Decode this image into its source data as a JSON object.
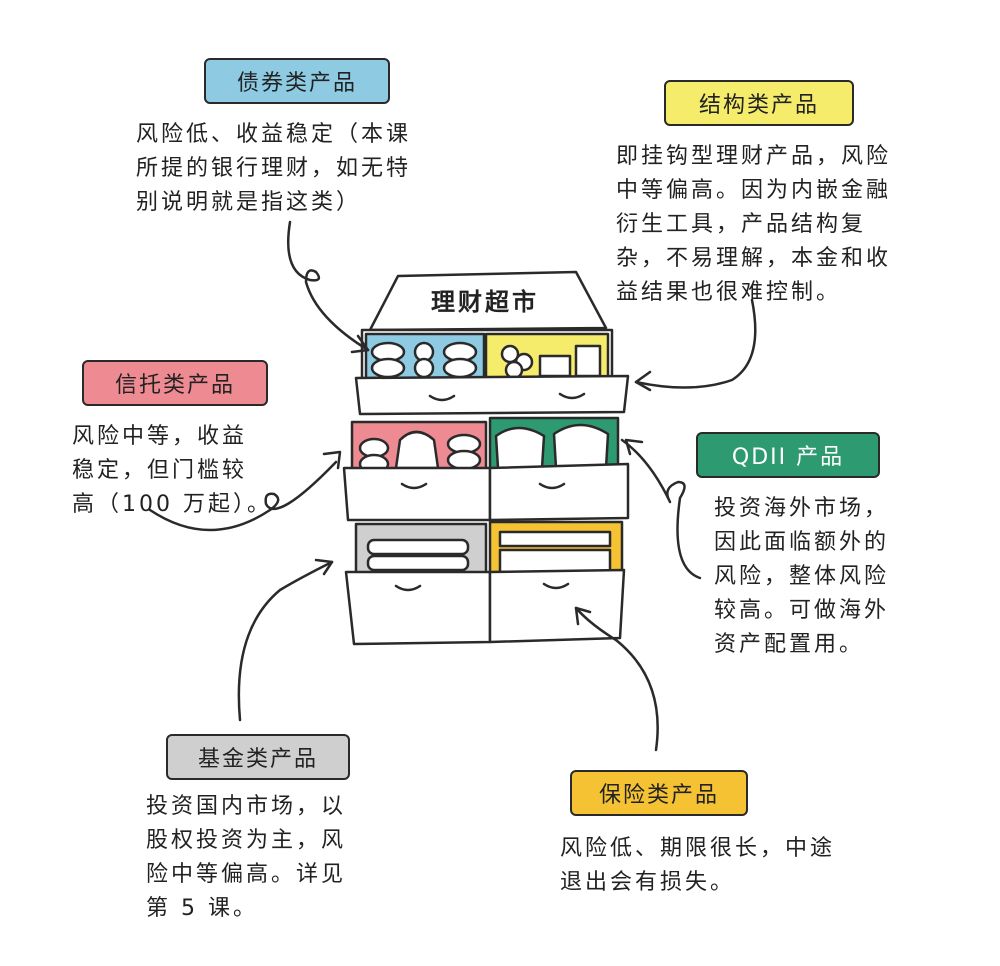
{
  "title": "理财超市",
  "colors": {
    "bond": "#8ecbe3",
    "structured": "#f4ec6a",
    "trust": "#ee8a92",
    "qdii": "#2e9a72",
    "fund": "#cfcfcf",
    "insurance": "#f4c233"
  },
  "categories": {
    "bond": {
      "label": "债券类产品",
      "desc": "风险低、收益稳定（本课\n所提的银行理财，如无特\n别说明就是指这类）"
    },
    "structured": {
      "label": "结构类产品",
      "desc": "即挂钩型理财产品，风险\n中等偏高。因为内嵌金融\n衍生工具，产品结构复\n杂，不易理解，本金和收\n益结果也很难控制。"
    },
    "trust": {
      "label": "信托类产品",
      "desc": "风险中等，收益\n稳定，但门槛较\n高（100 万起）。"
    },
    "qdii": {
      "label": "QDII 产品",
      "desc": "投资海外市场，\n因此面临额外的\n风险，整体风险\n较高。可做海外\n资产配置用。"
    },
    "fund": {
      "label": "基金类产品",
      "desc": "投资国内市场，以\n股权投资为主，风\n险中等偏高。详见\n第 5 课。"
    },
    "insurance": {
      "label": "保险类产品",
      "desc": "风险低、期限很长，中途\n退出会有损失。"
    }
  }
}
